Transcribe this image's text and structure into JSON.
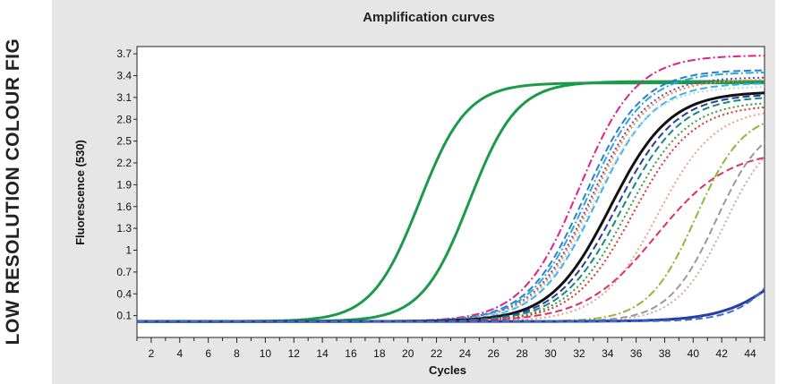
{
  "banner": {
    "text": "LOW RESOLUTION COLOUR FIG"
  },
  "chart_data": {
    "type": "line",
    "title": "Amplification curves",
    "xlabel": "Cycles",
    "ylabel": "Fluorescence (530)",
    "xlim": [
      1,
      45
    ],
    "ylim": [
      -0.2,
      3.8
    ],
    "x_ticks": [
      2,
      4,
      6,
      8,
      10,
      12,
      14,
      16,
      18,
      20,
      22,
      24,
      26,
      28,
      30,
      32,
      34,
      36,
      38,
      40,
      42,
      44
    ],
    "y_ticks": [
      0.1,
      0.4,
      0.7,
      1,
      1.3,
      1.6,
      1.9,
      2.2,
      2.5,
      2.8,
      3.1,
      3.4,
      3.7
    ],
    "y_tick_labels": [
      "0.1",
      "0.4",
      "0.7",
      "1",
      "1.3",
      "1.6",
      "1.9",
      "2.2",
      "2.5",
      "2.8",
      "3.1",
      "3.4",
      "3.7"
    ],
    "baseline": 0.02,
    "grid": false,
    "legend": "none",
    "series": [
      {
        "color": "#1a9a4a",
        "style": "solid",
        "width": 3,
        "plateau": 3.3,
        "midpoint": 20.8,
        "slope": 0.6
      },
      {
        "color": "#1a9a4a",
        "style": "solid",
        "width": 3,
        "plateau": 3.32,
        "midpoint": 24.3,
        "slope": 0.6
      },
      {
        "color": "#e0208a",
        "style": "dashdot",
        "width": 2,
        "plateau": 3.68,
        "midpoint": 32.0,
        "slope": 0.5
      },
      {
        "color": "#2a7fd0",
        "style": "dashed",
        "width": 2,
        "plateau": 3.48,
        "midpoint": 32.4,
        "slope": 0.5
      },
      {
        "color": "#2aa8d8",
        "style": "dashdot",
        "width": 2,
        "plateau": 3.45,
        "midpoint": 32.6,
        "slope": 0.5
      },
      {
        "color": "#7a3fb0",
        "style": "dotted",
        "width": 2,
        "plateau": 3.38,
        "midpoint": 32.8,
        "slope": 0.5
      },
      {
        "color": "#f08a30",
        "style": "dotted",
        "width": 2,
        "plateau": 3.35,
        "midpoint": 32.9,
        "slope": 0.5
      },
      {
        "color": "#3bb0e8",
        "style": "dashed",
        "width": 2,
        "plateau": 3.3,
        "midpoint": 33.2,
        "slope": 0.5
      },
      {
        "color": "#b0d8f0",
        "style": "dotted",
        "width": 2,
        "plateau": 3.25,
        "midpoint": 33.0,
        "slope": 0.5
      },
      {
        "color": "#111111",
        "style": "solid",
        "width": 3,
        "plateau": 3.18,
        "midpoint": 34.2,
        "slope": 0.48
      },
      {
        "color": "#2a3c9a",
        "style": "dashed",
        "width": 2,
        "plateau": 3.15,
        "midpoint": 34.6,
        "slope": 0.48
      },
      {
        "color": "#128a7a",
        "style": "dashed",
        "width": 2,
        "plateau": 3.12,
        "midpoint": 35.0,
        "slope": 0.48
      },
      {
        "color": "#3a9a3a",
        "style": "dotted",
        "width": 2,
        "plateau": 3.05,
        "midpoint": 35.4,
        "slope": 0.48
      },
      {
        "color": "#e03030",
        "style": "dotted",
        "width": 2,
        "plateau": 3.0,
        "midpoint": 35.8,
        "slope": 0.48
      },
      {
        "color": "#f0a080",
        "style": "dotted",
        "width": 2,
        "plateau": 2.95,
        "midpoint": 37.5,
        "slope": 0.5
      },
      {
        "color": "#e03060",
        "style": "dashed",
        "width": 2,
        "plateau": 2.38,
        "midpoint": 37.4,
        "slope": 0.4
      },
      {
        "color": "#8ab83a",
        "style": "dashdot",
        "width": 2,
        "plateau": 2.9,
        "midpoint": 40.2,
        "slope": 0.6
      },
      {
        "color": "#999999",
        "style": "dashed",
        "width": 2,
        "plateau": 2.8,
        "midpoint": 41.6,
        "slope": 0.6
      },
      {
        "color": "#d0a8a8",
        "style": "dotted",
        "width": 2,
        "plateau": 2.7,
        "midpoint": 42.2,
        "slope": 0.6
      },
      {
        "color": "#2a3ca8",
        "style": "solid",
        "width": 3,
        "plateau": 1.6,
        "midpoint": 47.2,
        "slope": 0.45
      },
      {
        "color": "#3a70c0",
        "style": "dashed",
        "width": 2,
        "plateau": 2.0,
        "midpoint": 47.0,
        "slope": 0.6
      }
    ]
  }
}
